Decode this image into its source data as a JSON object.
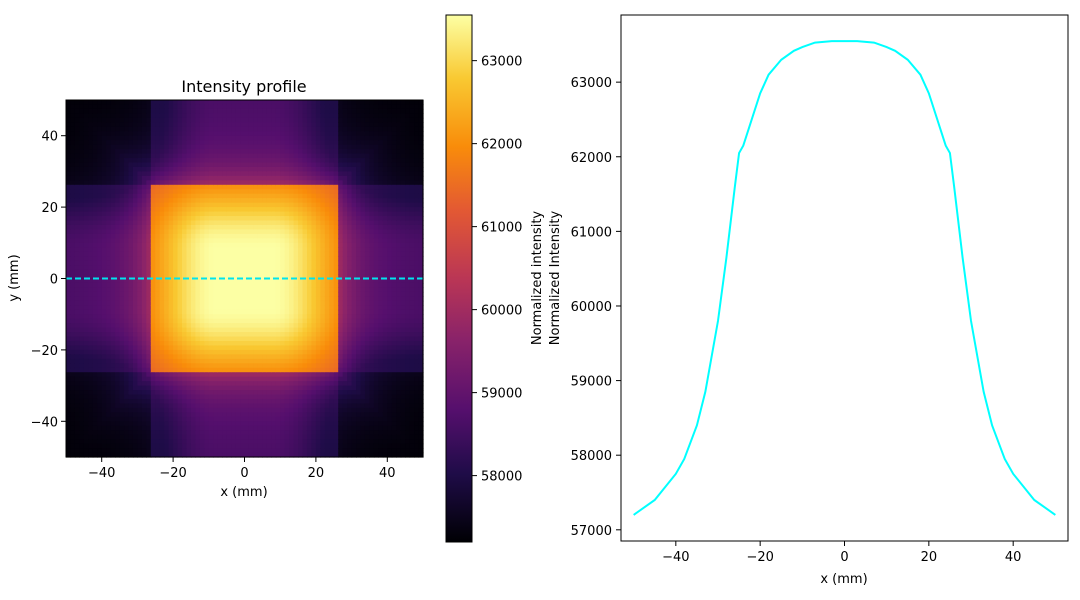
{
  "chart_data": [
    {
      "type": "heatmap",
      "title": "Intensity profile",
      "xlabel": "x (mm)",
      "ylabel": "y (mm)",
      "xlim": [
        -50,
        50
      ],
      "ylim": [
        -50,
        50
      ],
      "x_ticks": [
        -40,
        -20,
        0,
        20,
        40
      ],
      "y_ticks": [
        -40,
        -20,
        0,
        20,
        40
      ],
      "colormap": "inferno",
      "cut_line_y": 0,
      "cut_line_color": "#00e5ee",
      "colorbar": {
        "label_lines": [
          "Normalized intensity",
          "Normalized Intensity"
        ],
        "range": [
          57200,
          63550
        ],
        "ticks": [
          58000,
          59000,
          60000,
          61000,
          62000,
          63000
        ]
      }
    },
    {
      "type": "line",
      "xlabel": "x (mm)",
      "ylabel": "",
      "xlim": [
        -53,
        53
      ],
      "ylim": [
        56850,
        63900
      ],
      "x_ticks": [
        -40,
        -20,
        0,
        20,
        40
      ],
      "y_ticks": [
        57000,
        58000,
        59000,
        60000,
        61000,
        62000,
        63000
      ],
      "line_color": "#00ffff",
      "series": [
        {
          "x": [
            -50,
            -45,
            -40,
            -38,
            -35,
            -33,
            -30,
            -28,
            -26,
            -25,
            -24,
            -22,
            -20,
            -18,
            -15,
            -12,
            -10,
            -7,
            -5,
            -3,
            0,
            3,
            5,
            7,
            10,
            12,
            15,
            18,
            20,
            22,
            24,
            25,
            26,
            28,
            30,
            33,
            35,
            38,
            40,
            45,
            50
          ],
          "values": [
            57200,
            57400,
            57750,
            57950,
            58400,
            58850,
            59800,
            60650,
            61600,
            62050,
            62150,
            62500,
            62850,
            63100,
            63300,
            63420,
            63470,
            63530,
            63540,
            63550,
            63550,
            63550,
            63540,
            63530,
            63470,
            63420,
            63300,
            63100,
            62850,
            62500,
            62150,
            62050,
            61600,
            60650,
            59800,
            58850,
            58400,
            57950,
            57750,
            57400,
            57200
          ]
        }
      ]
    }
  ]
}
